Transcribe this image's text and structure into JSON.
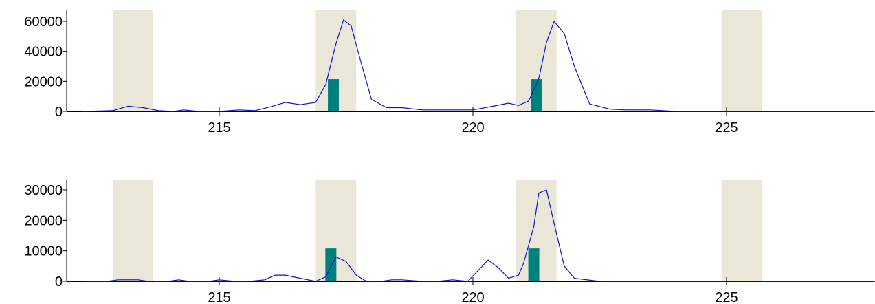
{
  "chart_data": [
    {
      "type": "line",
      "title": "",
      "xlabel": "",
      "ylabel": "",
      "xlim": [
        212.3,
        228.0
      ],
      "ylim": [
        0,
        65000
      ],
      "x_ticks": [
        215,
        220,
        225
      ],
      "x_tick_labels": [
        "215",
        "220",
        "225"
      ],
      "y_ticks": [
        0,
        20000,
        40000,
        60000
      ],
      "y_tick_labels": [
        "0",
        "20000",
        "40000",
        "60000"
      ],
      "grid": false,
      "legend": "none",
      "colors": {
        "line": "#1010d0",
        "bar": "#00807c",
        "band": "#ebe7d8",
        "axis": "#000000"
      },
      "bands": [
        [
          212.9,
          213.7
        ],
        [
          216.9,
          217.7
        ],
        [
          220.85,
          221.65
        ],
        [
          224.9,
          225.7
        ]
      ],
      "bars": [
        {
          "x": 217.25,
          "value": 21500
        },
        {
          "x": 221.25,
          "value": 21500
        }
      ],
      "series": [
        {
          "x": [
            212.3,
            212.9,
            213.2,
            213.5,
            213.8,
            214.1,
            214.3,
            214.6,
            215.0,
            215.4,
            215.7,
            216.0,
            216.3,
            216.6,
            216.9,
            217.1,
            217.3,
            217.45,
            217.6,
            217.8,
            218.0,
            218.3,
            218.6,
            219.0,
            219.5,
            220.0,
            220.4,
            220.7,
            220.9,
            221.1,
            221.3,
            221.45,
            221.6,
            221.8,
            222.0,
            222.3,
            222.7,
            223.0,
            223.5,
            224.0,
            225.0,
            226.0,
            227.0,
            228.0
          ],
          "values": [
            0,
            500,
            3500,
            2500,
            500,
            0,
            1000,
            0,
            0,
            1000,
            500,
            3000,
            6000,
            4500,
            6000,
            18000,
            45000,
            61000,
            57000,
            32000,
            8000,
            2500,
            2500,
            1000,
            1000,
            1000,
            3500,
            5500,
            4000,
            7000,
            22000,
            46000,
            60000,
            52000,
            30000,
            5000,
            1500,
            1000,
            1000,
            0,
            0,
            0,
            0,
            0
          ]
        }
      ]
    },
    {
      "type": "line",
      "title": "",
      "xlabel": "",
      "ylabel": "",
      "xlim": [
        212.3,
        228.0
      ],
      "ylim": [
        0,
        33000
      ],
      "x_ticks": [
        215,
        220,
        225
      ],
      "x_tick_labels": [
        "215",
        "220",
        "225"
      ],
      "y_ticks": [
        0,
        10000,
        20000,
        30000
      ],
      "y_tick_labels": [
        "0",
        "10000",
        "20000",
        "30000"
      ],
      "grid": false,
      "legend": "none",
      "colors": {
        "line": "#1010d0",
        "bar": "#00807c",
        "band": "#ebe7d8",
        "axis": "#000000"
      },
      "bands": [
        [
          212.9,
          213.7
        ],
        [
          216.9,
          217.7
        ],
        [
          220.85,
          221.65
        ],
        [
          224.9,
          225.7
        ]
      ],
      "bars": [
        {
          "x": 217.2,
          "value": 10800
        },
        {
          "x": 221.2,
          "value": 10800
        }
      ],
      "series": [
        {
          "x": [
            212.3,
            212.8,
            213.0,
            213.4,
            213.6,
            214.0,
            214.2,
            214.4,
            214.8,
            215.0,
            215.3,
            215.6,
            215.9,
            216.1,
            216.3,
            216.6,
            216.9,
            217.1,
            217.3,
            217.5,
            217.7,
            217.9,
            218.2,
            218.4,
            218.6,
            219.0,
            219.3,
            219.6,
            219.9,
            220.1,
            220.3,
            220.5,
            220.7,
            220.9,
            221.0,
            221.2,
            221.3,
            221.45,
            221.6,
            221.8,
            222.0,
            222.5,
            223.0,
            224.0,
            225.0,
            226.0,
            227.0,
            228.0
          ],
          "values": [
            0,
            0,
            500,
            500,
            0,
            0,
            500,
            0,
            0,
            500,
            0,
            0,
            500,
            2000,
            2000,
            1000,
            0,
            1500,
            8000,
            6500,
            2000,
            0,
            0,
            500,
            500,
            0,
            0,
            500,
            0,
            3500,
            7000,
            4500,
            1000,
            2000,
            6000,
            18000,
            29000,
            30000,
            19000,
            5000,
            1000,
            0,
            0,
            0,
            0,
            0,
            0,
            0
          ]
        }
      ]
    }
  ]
}
